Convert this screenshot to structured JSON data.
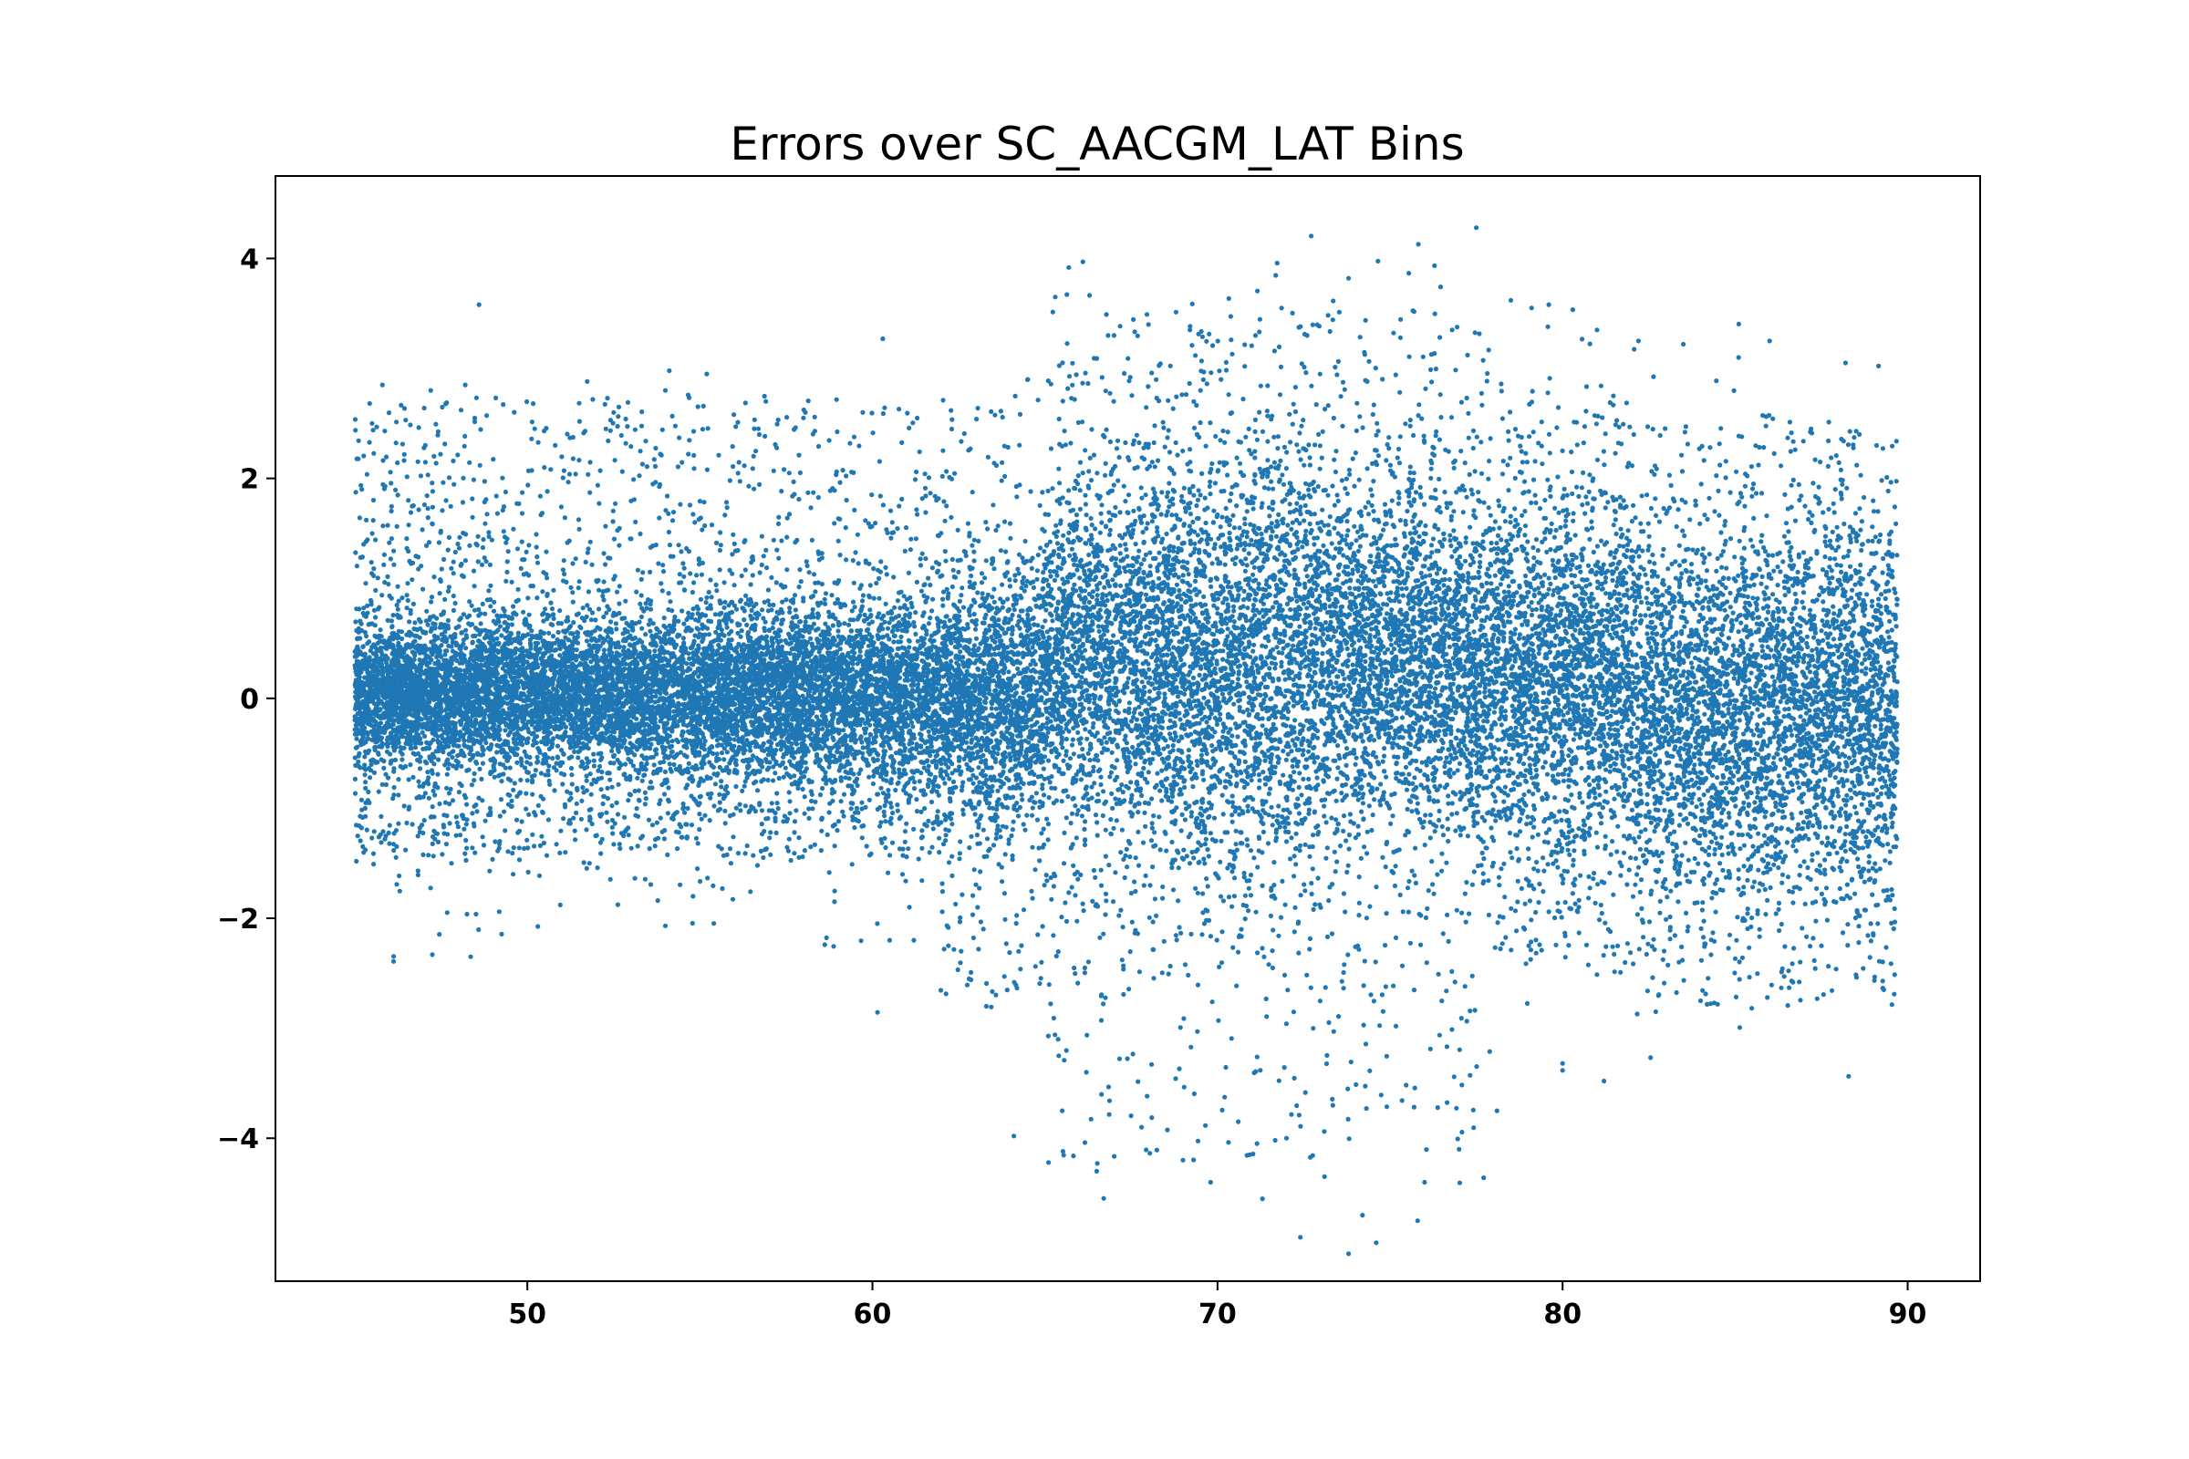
{
  "chart_data": {
    "type": "scatter",
    "title": "Errors over SC_AACGM_LAT Bins",
    "xlabel": "",
    "ylabel": "",
    "xlim": [
      42.7,
      92.1
    ],
    "ylim": [
      -5.3,
      4.75
    ],
    "x_ticks": [
      50,
      60,
      70,
      80,
      90
    ],
    "y_ticks": [
      -4,
      -2,
      0,
      2,
      4
    ],
    "x_tick_labels": [
      "50",
      "60",
      "70",
      "80",
      "90"
    ],
    "y_tick_labels": [
      "−4",
      "−2",
      "0",
      "2",
      "4"
    ],
    "grid": false,
    "legend": "none",
    "point_color": "#1f77b4",
    "x_data_range": [
      45,
      89.7
    ],
    "series": [
      {
        "points": [
          [
            45.1,
            0.0
          ],
          [
            45.3,
            0.6
          ],
          [
            45.3,
            -1.0
          ],
          [
            45.5,
            2.5
          ],
          [
            45.8,
            2.85
          ],
          [
            46.2,
            -1.2
          ],
          [
            47.2,
            2.8
          ],
          [
            47.8,
            -1.5
          ],
          [
            48.2,
            2.85
          ],
          [
            48.6,
            3.58
          ],
          [
            49.2,
            -1.3
          ],
          [
            51.1,
            -1.4
          ],
          [
            52.5,
            2.6
          ],
          [
            54.0,
            2.8
          ],
          [
            54.8,
            -1.8
          ],
          [
            55.2,
            2.95
          ],
          [
            55.9,
            -1.5
          ],
          [
            58.0,
            2.55
          ],
          [
            58.9,
            -1.85
          ],
          [
            60.3,
            3.27
          ],
          [
            60.5,
            -2.2
          ],
          [
            61.2,
            -2.2
          ],
          [
            62.2,
            -2.25
          ],
          [
            62.8,
            -2.55
          ],
          [
            63.3,
            -2.8
          ],
          [
            64.1,
            -3.98
          ],
          [
            64.5,
            2.9
          ],
          [
            64.9,
            -2.4
          ],
          [
            65.3,
            3.65
          ],
          [
            65.4,
            -3.25
          ],
          [
            65.5,
            -3.75
          ],
          [
            66.1,
            3.97
          ],
          [
            66.2,
            -3.4
          ],
          [
            66.5,
            -4.3
          ],
          [
            67.0,
            3.3
          ],
          [
            67.8,
            -3.9
          ],
          [
            68.0,
            3.4
          ],
          [
            69.0,
            -4.2
          ],
          [
            69.2,
            3.35
          ],
          [
            69.8,
            -4.4
          ],
          [
            70.1,
            2.9
          ],
          [
            70.6,
            -3.85
          ],
          [
            71.1,
            3.3
          ],
          [
            71.3,
            -4.55
          ],
          [
            72.0,
            -4.0
          ],
          [
            72.4,
            -4.9
          ],
          [
            72.6,
            3.3
          ],
          [
            73.1,
            -4.35
          ],
          [
            73.8,
            3.82
          ],
          [
            73.8,
            -5.05
          ],
          [
            74.2,
            -4.7
          ],
          [
            74.6,
            -4.95
          ],
          [
            75.3,
            3.28
          ],
          [
            75.8,
            -4.75
          ],
          [
            76.0,
            -4.4
          ],
          [
            76.8,
            3.35
          ],
          [
            77.0,
            -4.1
          ],
          [
            77.5,
            4.28
          ],
          [
            78.1,
            -3.75
          ],
          [
            78.5,
            3.62
          ],
          [
            79.1,
            3.55
          ],
          [
            79.6,
            3.58
          ],
          [
            80.0,
            -3.32
          ],
          [
            81.0,
            3.35
          ],
          [
            81.2,
            -3.48
          ],
          [
            82.2,
            3.25
          ],
          [
            82.7,
            -2.85
          ],
          [
            83.5,
            3.22
          ],
          [
            84.0,
            -2.75
          ],
          [
            85.1,
            3.1
          ],
          [
            86.0,
            3.25
          ],
          [
            87.2,
            2.45
          ],
          [
            87.5,
            -2.25
          ],
          [
            88.2,
            3.05
          ],
          [
            88.6,
            2.4
          ],
          [
            89.1,
            2.3
          ],
          [
            89.2,
            -1.55
          ],
          [
            89.5,
            1.3
          ],
          [
            89.6,
            -0.8
          ],
          [
            89.7,
            0.9
          ],
          [
            89.7,
            0.15
          ]
        ]
      }
    ]
  }
}
